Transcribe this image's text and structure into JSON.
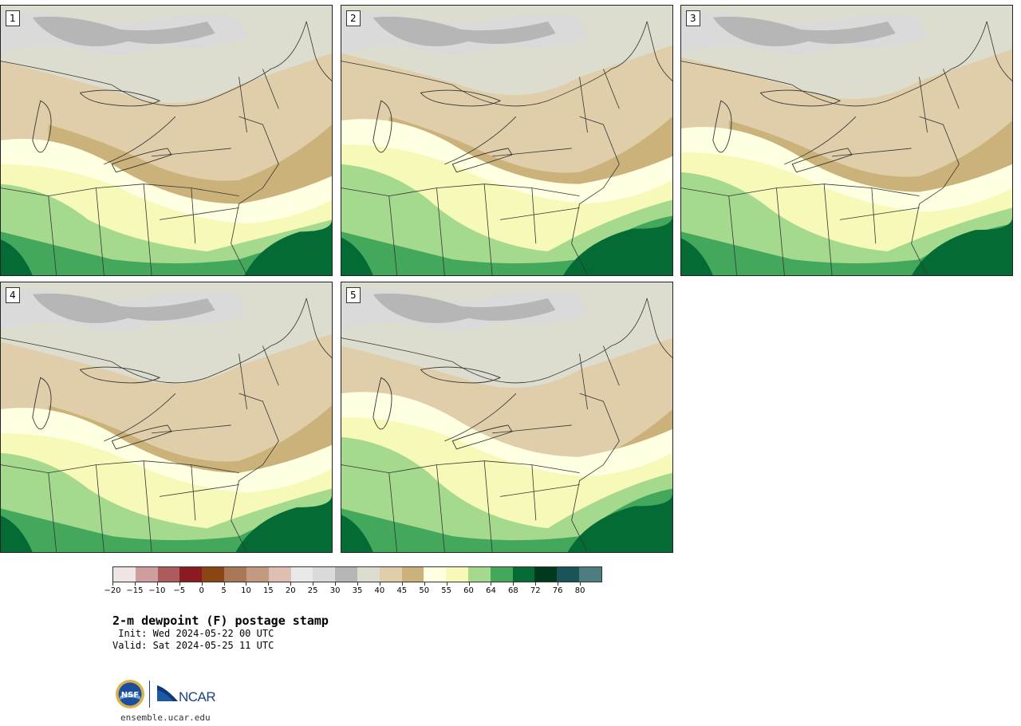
{
  "panels": [
    {
      "label": "1"
    },
    {
      "label": "2"
    },
    {
      "label": "3"
    },
    {
      "label": "4"
    },
    {
      "label": "5"
    }
  ],
  "colorbar": {
    "levels": [
      "−20",
      "−15",
      "−10",
      "−5",
      "0",
      "5",
      "10",
      "15",
      "20",
      "25",
      "30",
      "35",
      "40",
      "45",
      "50",
      "55",
      "60",
      "64",
      "68",
      "72",
      "76",
      "80"
    ],
    "colors": [
      "#f1e4e4",
      "#cf9d9e",
      "#ad5a5c",
      "#8c1a21",
      "#8b4513",
      "#a97657",
      "#c39a81",
      "#dfc0b0",
      "#e9e9e9",
      "#dadada",
      "#b6b6b6",
      "#dcdccf",
      "#e0ceaa",
      "#cbb27a",
      "#ffffe1",
      "#f6f9b8",
      "#a4d98e",
      "#43a85c",
      "#036b33",
      "#00391d",
      "#1b5458",
      "#4c7c80"
    ]
  },
  "map_colors": {
    "gray_dark": "#b6b6b6",
    "gray_light": "#dadada",
    "gray_pale": "#dcdccf",
    "tan_light": "#e0ceaa",
    "tan": "#cbb27a",
    "cream": "#ffffe1",
    "yellow": "#f6f9b8",
    "green_light": "#a4d98e",
    "green": "#43a85c",
    "green_dark": "#036b33"
  },
  "title": "2-m dewpoint (F) postage stamp",
  "init_line": " Init: Wed 2024-05-22 00 UTC",
  "valid_line": "Valid: Sat 2024-05-25 11 UTC",
  "logos": {
    "nsf_text": "NSF",
    "ncar_text": "NCAR"
  },
  "url": "ensemble.ucar.edu"
}
